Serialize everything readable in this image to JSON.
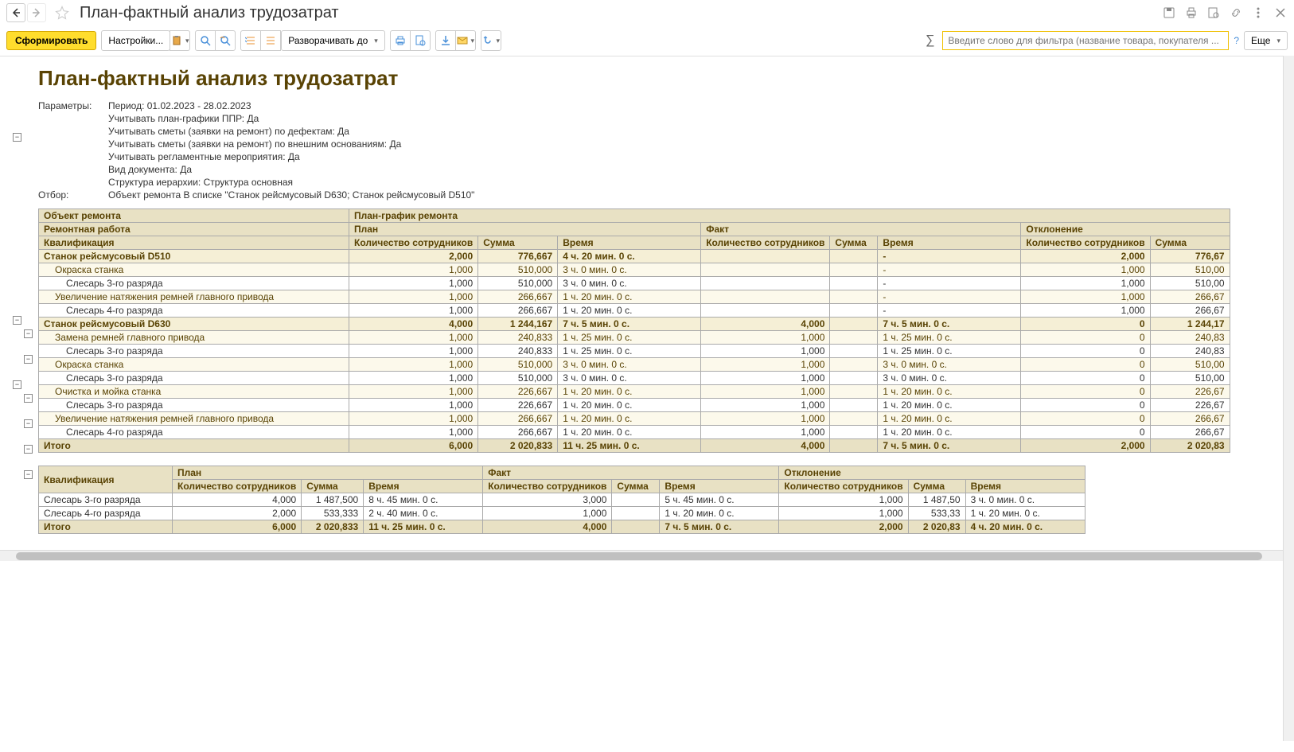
{
  "title": "План-фактный анализ трудозатрат",
  "toolbar": {
    "generate": "Сформировать",
    "settings": "Настройки...",
    "expand_to": "Разворачивать до",
    "more": "Еще",
    "filter_placeholder": "Введите слово для фильтра (название товара, покупателя ..."
  },
  "report_title": "План-фактный анализ трудозатрат",
  "params_label": "Параметры:",
  "filter_label": "Отбор:",
  "params": [
    "Период: 01.02.2023 - 28.02.2023",
    "Учитывать план-графики ППР: Да",
    "Учитывать сметы (заявки на ремонт) по дефектам: Да",
    "Учитывать сметы (заявки на ремонт) по внешним основаниям: Да",
    "Учитывать регламентные мероприятия: Да",
    "Вид документа: Да",
    "Структура иерархии: Структура основная"
  ],
  "filter_text": "Объект ремонта В списке \"Станок рейсмусовый D630; Станок рейсмусовый D510\"",
  "t1": {
    "h_object": "Объект ремонта",
    "h_schedule": "План-график ремонта",
    "h_work": "Ремонтная работа",
    "h_plan": "План",
    "h_fact": "Факт",
    "h_dev": "Отклонение",
    "h_qual": "Квалификация",
    "h_qty": "Количество сотрудников",
    "h_sum": "Сумма",
    "h_time": "Время",
    "total_label": "Итого"
  },
  "colors": {
    "header_bg": "#e8e1c4",
    "header_fg": "#594304",
    "group1_bg": "#f5efd6",
    "group2_bg": "#fcf9eb",
    "accent": "#ffdd2d"
  },
  "rows1": [
    {
      "cls": "grp1",
      "name": "Станок рейсмусовый D510",
      "pq": "2,000",
      "ps": "776,667",
      "pt": "4 ч. 20 мин. 0 с.",
      "fq": "",
      "fs": "",
      "ft": "-",
      "dq": "2,000",
      "ds": "776,67"
    },
    {
      "cls": "grp2",
      "name": "Окраска станка",
      "ind": 1,
      "pq": "1,000",
      "ps": "510,000",
      "pt": "3 ч. 0 мин. 0 с.",
      "fq": "",
      "fs": "",
      "ft": "-",
      "dq": "1,000",
      "ds": "510,00"
    },
    {
      "cls": "detail",
      "name": "Слесарь 3-го разряда",
      "ind": 2,
      "pq": "1,000",
      "ps": "510,000",
      "pt": "3 ч. 0 мин. 0 с.",
      "fq": "",
      "fs": "",
      "ft": "-",
      "dq": "1,000",
      "ds": "510,00"
    },
    {
      "cls": "grp2",
      "name": "Увеличение натяжения ремней главного привода",
      "ind": 1,
      "pq": "1,000",
      "ps": "266,667",
      "pt": "1 ч. 20 мин. 0 с.",
      "fq": "",
      "fs": "",
      "ft": "-",
      "dq": "1,000",
      "ds": "266,67"
    },
    {
      "cls": "detail",
      "name": "Слесарь 4-го разряда",
      "ind": 2,
      "pq": "1,000",
      "ps": "266,667",
      "pt": "1 ч. 20 мин. 0 с.",
      "fq": "",
      "fs": "",
      "ft": "-",
      "dq": "1,000",
      "ds": "266,67"
    },
    {
      "cls": "grp1",
      "name": "Станок рейсмусовый D630",
      "pq": "4,000",
      "ps": "1 244,167",
      "pt": "7 ч. 5 мин. 0 с.",
      "fq": "4,000",
      "fs": "",
      "ft": "7 ч. 5 мин. 0 с.",
      "dq": "0",
      "ds": "1 244,17"
    },
    {
      "cls": "grp2",
      "name": "Замена ремней главного привода",
      "ind": 1,
      "pq": "1,000",
      "ps": "240,833",
      "pt": "1 ч. 25 мин. 0 с.",
      "fq": "1,000",
      "fs": "",
      "ft": "1 ч. 25 мин. 0 с.",
      "dq": "0",
      "ds": "240,83"
    },
    {
      "cls": "detail",
      "name": "Слесарь 3-го разряда",
      "ind": 2,
      "pq": "1,000",
      "ps": "240,833",
      "pt": "1 ч. 25 мин. 0 с.",
      "fq": "1,000",
      "fs": "",
      "ft": "1 ч. 25 мин. 0 с.",
      "dq": "0",
      "ds": "240,83"
    },
    {
      "cls": "grp2",
      "name": "Окраска станка",
      "ind": 1,
      "pq": "1,000",
      "ps": "510,000",
      "pt": "3 ч. 0 мин. 0 с.",
      "fq": "1,000",
      "fs": "",
      "ft": "3 ч. 0 мин. 0 с.",
      "dq": "0",
      "ds": "510,00"
    },
    {
      "cls": "detail",
      "name": "Слесарь 3-го разряда",
      "ind": 2,
      "pq": "1,000",
      "ps": "510,000",
      "pt": "3 ч. 0 мин. 0 с.",
      "fq": "1,000",
      "fs": "",
      "ft": "3 ч. 0 мин. 0 с.",
      "dq": "0",
      "ds": "510,00"
    },
    {
      "cls": "grp2",
      "name": "Очистка и мойка станка",
      "ind": 1,
      "pq": "1,000",
      "ps": "226,667",
      "pt": "1 ч. 20 мин. 0 с.",
      "fq": "1,000",
      "fs": "",
      "ft": "1 ч. 20 мин. 0 с.",
      "dq": "0",
      "ds": "226,67"
    },
    {
      "cls": "detail",
      "name": "Слесарь 3-го разряда",
      "ind": 2,
      "pq": "1,000",
      "ps": "226,667",
      "pt": "1 ч. 20 мин. 0 с.",
      "fq": "1,000",
      "fs": "",
      "ft": "1 ч. 20 мин. 0 с.",
      "dq": "0",
      "ds": "226,67"
    },
    {
      "cls": "grp2",
      "name": "Увеличение натяжения ремней главного привода",
      "ind": 1,
      "pq": "1,000",
      "ps": "266,667",
      "pt": "1 ч. 20 мин. 0 с.",
      "fq": "1,000",
      "fs": "",
      "ft": "1 ч. 20 мин. 0 с.",
      "dq": "0",
      "ds": "266,67"
    },
    {
      "cls": "detail",
      "name": "Слесарь 4-го разряда",
      "ind": 2,
      "pq": "1,000",
      "ps": "266,667",
      "pt": "1 ч. 20 мин. 0 с.",
      "fq": "1,000",
      "fs": "",
      "ft": "1 ч. 20 мин. 0 с.",
      "dq": "0",
      "ds": "266,67"
    }
  ],
  "tot1": {
    "pq": "6,000",
    "ps": "2 020,833",
    "pt": "11 ч. 25 мин. 0 с.",
    "fq": "4,000",
    "fs": "",
    "ft": "7 ч. 5 мин. 0 с.",
    "dq": "2,000",
    "ds": "2 020,83"
  },
  "t2": {
    "h_qual": "Квалификация",
    "h_plan": "План",
    "h_fact": "Факт",
    "h_dev": "Отклонение",
    "h_qty": "Количество сотрудников",
    "h_sum": "Сумма",
    "h_time": "Время",
    "total_label": "Итого"
  },
  "rows2": [
    {
      "name": "Слесарь 3-го разряда",
      "pq": "4,000",
      "ps": "1 487,500",
      "pt": "8 ч. 45 мин. 0 с.",
      "fq": "3,000",
      "fs": "",
      "ft": "5 ч. 45 мин. 0 с.",
      "dq": "1,000",
      "ds": "1 487,50",
      "dt": "3 ч. 0 мин. 0 с."
    },
    {
      "name": "Слесарь 4-го разряда",
      "pq": "2,000",
      "ps": "533,333",
      "pt": "2 ч. 40 мин. 0 с.",
      "fq": "1,000",
      "fs": "",
      "ft": "1 ч. 20 мин. 0 с.",
      "dq": "1,000",
      "ds": "533,33",
      "dt": "1 ч. 20 мин. 0 с."
    }
  ],
  "tot2": {
    "pq": "6,000",
    "ps": "2 020,833",
    "pt": "11 ч. 25 мин. 0 с.",
    "fq": "4,000",
    "fs": "",
    "ft": "7 ч. 5 мин. 0 с.",
    "dq": "2,000",
    "ds": "2 020,83",
    "dt": "4 ч. 20 мин. 0 с."
  }
}
